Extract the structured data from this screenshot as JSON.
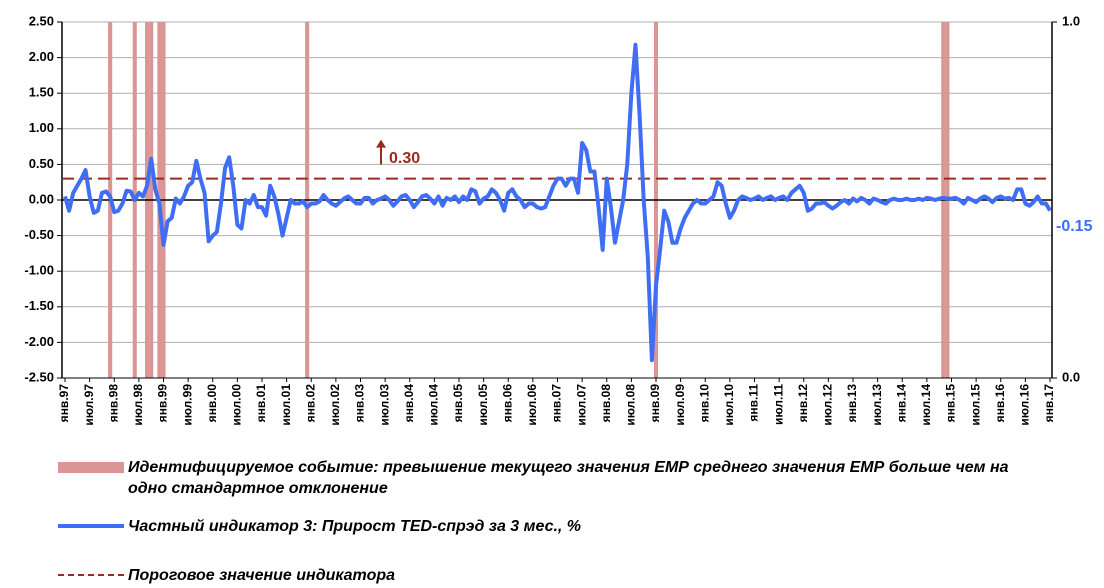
{
  "chart_data": {
    "type": "line",
    "categories": [
      "янв.97",
      null,
      null,
      null,
      null,
      null,
      "июл.97",
      null,
      null,
      null,
      null,
      null,
      "янв.98",
      null,
      null,
      null,
      null,
      null,
      "июл.98",
      null,
      null,
      null,
      null,
      null,
      "янв.99",
      null,
      null,
      null,
      null,
      null,
      "июл.99",
      null,
      null,
      null,
      null,
      null,
      "янв.00",
      null,
      null,
      null,
      null,
      null,
      "июл.00",
      null,
      null,
      null,
      null,
      null,
      "янв.01",
      null,
      null,
      null,
      null,
      null,
      "июл.01",
      null,
      null,
      null,
      null,
      null,
      "янв.02",
      null,
      null,
      null,
      null,
      null,
      "июл.02",
      null,
      null,
      null,
      null,
      null,
      "янв.03",
      null,
      null,
      null,
      null,
      null,
      "июл.03",
      null,
      null,
      null,
      null,
      null,
      "янв.04",
      null,
      null,
      null,
      null,
      null,
      "июл.04",
      null,
      null,
      null,
      null,
      null,
      "янв.05",
      null,
      null,
      null,
      null,
      null,
      "июл.05",
      null,
      null,
      null,
      null,
      null,
      "янв.06",
      null,
      null,
      null,
      null,
      null,
      "июл.06",
      null,
      null,
      null,
      null,
      null,
      "янв.07",
      null,
      null,
      null,
      null,
      null,
      "июл.07",
      null,
      null,
      null,
      null,
      null,
      "янв.08",
      null,
      null,
      null,
      null,
      null,
      "июл.08",
      null,
      null,
      null,
      null,
      null,
      "янв.09",
      null,
      null,
      null,
      null,
      null,
      "июл.09",
      null,
      null,
      null,
      null,
      null,
      "янв.10",
      null,
      null,
      null,
      null,
      null,
      "июл.10",
      null,
      null,
      null,
      null,
      null,
      "янв.11",
      null,
      null,
      null,
      null,
      null,
      "июл.11",
      null,
      null,
      null,
      null,
      null,
      "янв.12",
      null,
      null,
      null,
      null,
      null,
      "июл.12",
      null,
      null,
      null,
      null,
      null,
      "янв.13",
      null,
      null,
      null,
      null,
      null,
      "июл.13",
      null,
      null,
      null,
      null,
      null,
      "янв.14",
      null,
      null,
      null,
      null,
      null,
      "июл.14",
      null,
      null,
      null,
      null,
      null,
      "янв.15",
      null,
      null,
      null,
      null,
      null,
      "июл.15",
      null,
      null,
      null,
      null,
      null,
      "янв.16",
      null,
      null,
      null,
      null,
      null,
      "июл.16",
      null,
      null,
      null,
      null,
      null,
      "янв.17"
    ],
    "series": [
      {
        "name": "Идентифицируемое событие: превышение текущего значения ЕМР среднего значения ЕМР больше чем на одно стандартное отклонение",
        "type": "bar",
        "axis": "y2",
        "color": "#d99694",
        "values": [
          null,
          null,
          null,
          null,
          null,
          null,
          null,
          null,
          null,
          null,
          null,
          1,
          null,
          null,
          null,
          null,
          null,
          1,
          null,
          null,
          1,
          1,
          null,
          1,
          1,
          null,
          null,
          null,
          null,
          null,
          null,
          null,
          null,
          null,
          null,
          null,
          null,
          null,
          null,
          null,
          null,
          null,
          null,
          null,
          null,
          null,
          null,
          null,
          null,
          null,
          null,
          null,
          null,
          null,
          null,
          null,
          null,
          null,
          null,
          1,
          null,
          null,
          null,
          null,
          null,
          null,
          null,
          null,
          null,
          null,
          null,
          null,
          null,
          null,
          null,
          null,
          null,
          null,
          null,
          null,
          null,
          null,
          null,
          null,
          null,
          null,
          null,
          null,
          null,
          null,
          null,
          null,
          null,
          null,
          null,
          null,
          null,
          null,
          null,
          null,
          null,
          null,
          null,
          null,
          null,
          null,
          null,
          null,
          null,
          null,
          null,
          null,
          null,
          null,
          null,
          null,
          null,
          null,
          null,
          null,
          null,
          null,
          null,
          null,
          null,
          null,
          null,
          null,
          null,
          null,
          null,
          null,
          null,
          null,
          null,
          null,
          null,
          null,
          null,
          null,
          null,
          null,
          null,
          null,
          1,
          null,
          null,
          null,
          null,
          null,
          null,
          null,
          null,
          null,
          null,
          null,
          null,
          null,
          null,
          null,
          null,
          null,
          null,
          null,
          null,
          null,
          null,
          null,
          null,
          null,
          null,
          null,
          null,
          null,
          null,
          null,
          null,
          null,
          null,
          null,
          null,
          null,
          null,
          null,
          null,
          null,
          null,
          null,
          null,
          null,
          null,
          null,
          null,
          null,
          null,
          null,
          null,
          null,
          null,
          null,
          null,
          null,
          null,
          null,
          null,
          null,
          null,
          null,
          null,
          null,
          null,
          null,
          null,
          null,
          1,
          1,
          null,
          null,
          null,
          null,
          null,
          null,
          null,
          null,
          null,
          null,
          null,
          null,
          null,
          null,
          null,
          null,
          null,
          null,
          null,
          null,
          null,
          null,
          null,
          null,
          null
        ]
      },
      {
        "name": "Частный индикатор 3: Прирост TED-спрэд за 3 мес., %",
        "type": "line",
        "color": "#3f6ef5",
        "end_label": "-0.15",
        "values": [
          0.05,
          -0.15,
          0.1,
          0.2,
          0.3,
          0.42,
          0.05,
          -0.18,
          -0.15,
          0.1,
          0.12,
          0.05,
          -0.17,
          -0.15,
          -0.05,
          0.13,
          0.12,
          0,
          0.1,
          0.05,
          0.2,
          0.58,
          0.15,
          -0.05,
          -0.63,
          -0.3,
          -0.25,
          0.02,
          -0.05,
          0.05,
          0.2,
          0.25,
          0.55,
          0.3,
          0.1,
          -0.58,
          -0.5,
          -0.45,
          -0.05,
          0.45,
          0.6,
          0.2,
          -0.35,
          -0.4,
          0,
          -0.05,
          0.07,
          -0.1,
          -0.1,
          -0.22,
          0.2,
          0.05,
          -0.2,
          -0.5,
          -0.25,
          0,
          -0.05,
          -0.05,
          -0.02,
          -0.1,
          -0.05,
          -0.05,
          -0.02,
          0.07,
          0,
          -0.05,
          -0.08,
          -0.03,
          0.02,
          0.05,
          0,
          -0.05,
          -0.05,
          0.03,
          0.03,
          -0.05,
          0,
          0.02,
          0.05,
          0,
          -0.08,
          -0.02,
          0.05,
          0.07,
          0,
          -0.1,
          -0.03,
          0.05,
          0.07,
          0.02,
          -0.05,
          0.05,
          -0.08,
          0.03,
          0,
          0.05,
          -0.03,
          0.05,
          0,
          0.15,
          0.12,
          -0.05,
          0.02,
          0.05,
          0.15,
          0.1,
          0,
          -0.15,
          0.1,
          0.15,
          0.05,
          0,
          -0.1,
          -0.05,
          -0.05,
          -0.1,
          -0.12,
          -0.1,
          0.05,
          0.2,
          0.3,
          0.3,
          0.2,
          0.3,
          0.3,
          0.1,
          0.8,
          0.7,
          0.4,
          0.4,
          -0.1,
          -0.7,
          0.3,
          -0.1,
          -0.6,
          -0.3,
          0,
          0.5,
          1.5,
          2.18,
          1.2,
          0,
          -0.8,
          -2.25,
          -1.2,
          -0.7,
          -0.15,
          -0.3,
          -0.6,
          -0.6,
          -0.4,
          -0.25,
          -0.15,
          -0.05,
          0,
          -0.05,
          -0.05,
          0,
          0.05,
          0.25,
          0.2,
          -0.05,
          -0.25,
          -0.15,
          0,
          0.05,
          0.03,
          0,
          0.02,
          0.05,
          0,
          0.03,
          0.05,
          0,
          0.03,
          0.05,
          0,
          0.1,
          0.15,
          0.2,
          0.1,
          -0.15,
          -0.12,
          -0.05,
          -0.05,
          -0.03,
          -0.08,
          -0.12,
          -0.08,
          -0.03,
          0,
          -0.05,
          0.02,
          -0.02,
          0.03,
          0,
          -0.05,
          0.02,
          0,
          -0.03,
          -0.05,
          0,
          0.02,
          0,
          0,
          0.02,
          0,
          0,
          0.02,
          0,
          0.03,
          0.02,
          0,
          0.02,
          0.03,
          0.02,
          0.02,
          0.03,
          0,
          -0.05,
          0.03,
          0,
          -0.03,
          0.02,
          0.05,
          0.02,
          -0.03,
          0.03,
          0.05,
          0.02,
          0.03,
          0,
          0.15,
          0.15,
          -0.05,
          -0.08,
          -0.03,
          0.05,
          -0.05,
          -0.05,
          -0.15
        ]
      }
    ],
    "threshold": {
      "name": "Пороговое значение индикатора",
      "value": 0.3,
      "label": "0.30",
      "color": "#9b2b1e"
    },
    "ylim": [
      -2.5,
      2.5
    ],
    "yticks": [
      {
        "value": -2.5,
        "label": "-2.50"
      },
      {
        "value": -2,
        "label": "-2.00"
      },
      {
        "value": -1.5,
        "label": "-1.50"
      },
      {
        "value": -1,
        "label": "-1.00"
      },
      {
        "value": -0.5,
        "label": "-0.50"
      },
      {
        "value": 0,
        "label": "0.00"
      },
      {
        "value": 0.5,
        "label": "0.50"
      },
      {
        "value": 1,
        "label": "1.00"
      },
      {
        "value": 1.5,
        "label": "1.50"
      },
      {
        "value": 2,
        "label": "2.00"
      },
      {
        "value": 2.5,
        "label": "2.50"
      }
    ],
    "y2lim": [
      0,
      1
    ],
    "y2ticks": [
      {
        "value": 0,
        "label": "0.0"
      },
      {
        "value": 1,
        "label": "1.0"
      }
    ],
    "grid": true
  }
}
